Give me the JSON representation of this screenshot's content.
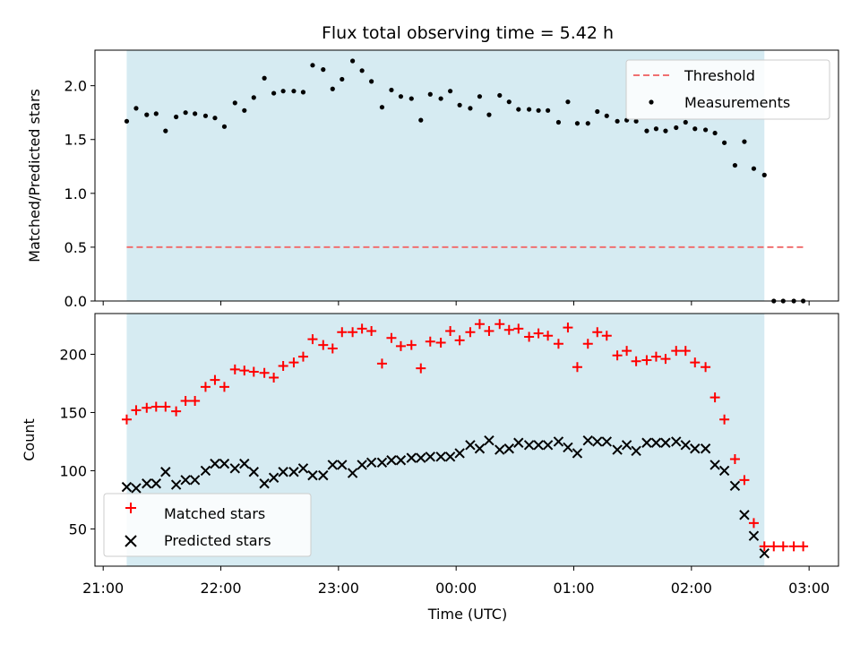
{
  "chart_data": {
    "type": "scatter",
    "title": "Flux total observing time = 5.42 h",
    "xlabel": "Time (UTC)",
    "x_ticks": [
      "21:00",
      "22:00",
      "23:00",
      "00:00",
      "01:00",
      "02:00",
      "03:00"
    ],
    "x_range_hours": [
      20.93,
      27.25
    ],
    "observing_window_hours": [
      21.2,
      26.62
    ],
    "colors": {
      "window": "#add8e6",
      "threshold": "#f07070",
      "measurements": "#000000",
      "matched": "#ff0000",
      "predicted": "#000000"
    },
    "panels": [
      {
        "ylabel": "Matched/Predicted stars",
        "ylim": [
          0,
          2.33
        ],
        "y_ticks": [
          "0.0",
          "0.5",
          "1.0",
          "1.5",
          "2.0"
        ],
        "y_tick_values": [
          0,
          0.5,
          1.0,
          1.5,
          2.0
        ],
        "legend_position": "top-right",
        "series": [
          {
            "name": "Threshold",
            "kind": "dashed-line",
            "x": [
              21.2,
              26.95
            ],
            "values": [
              0.5,
              0.5
            ]
          },
          {
            "name": "Measurements",
            "kind": "dot",
            "values": [
              [
                21.2,
                1.67
              ],
              [
                21.28,
                1.79
              ],
              [
                21.37,
                1.73
              ],
              [
                21.45,
                1.74
              ],
              [
                21.53,
                1.58
              ],
              [
                21.62,
                1.71
              ],
              [
                21.7,
                1.75
              ],
              [
                21.78,
                1.74
              ],
              [
                21.87,
                1.72
              ],
              [
                21.95,
                1.7
              ],
              [
                22.03,
                1.62
              ],
              [
                22.12,
                1.84
              ],
              [
                22.2,
                1.77
              ],
              [
                22.28,
                1.89
              ],
              [
                22.37,
                2.07
              ],
              [
                22.45,
                1.93
              ],
              [
                22.53,
                1.95
              ],
              [
                22.62,
                1.95
              ],
              [
                22.7,
                1.94
              ],
              [
                22.78,
                2.19
              ],
              [
                22.87,
                2.15
              ],
              [
                22.95,
                1.97
              ],
              [
                23.03,
                2.06
              ],
              [
                23.12,
                2.23
              ],
              [
                23.2,
                2.14
              ],
              [
                23.28,
                2.04
              ],
              [
                23.37,
                1.8
              ],
              [
                23.45,
                1.96
              ],
              [
                23.53,
                1.9
              ],
              [
                23.62,
                1.88
              ],
              [
                23.7,
                1.68
              ],
              [
                23.78,
                1.92
              ],
              [
                23.87,
                1.88
              ],
              [
                23.95,
                1.95
              ],
              [
                24.03,
                1.82
              ],
              [
                24.12,
                1.79
              ],
              [
                24.2,
                1.9
              ],
              [
                24.28,
                1.73
              ],
              [
                24.37,
                1.91
              ],
              [
                24.45,
                1.85
              ],
              [
                24.53,
                1.78
              ],
              [
                24.62,
                1.78
              ],
              [
                24.7,
                1.77
              ],
              [
                24.78,
                1.77
              ],
              [
                24.87,
                1.66
              ],
              [
                24.95,
                1.85
              ],
              [
                25.03,
                1.65
              ],
              [
                25.12,
                1.65
              ],
              [
                25.2,
                1.76
              ],
              [
                25.28,
                1.72
              ],
              [
                25.37,
                1.67
              ],
              [
                25.45,
                1.68
              ],
              [
                25.53,
                1.67
              ],
              [
                25.62,
                1.58
              ],
              [
                25.7,
                1.6
              ],
              [
                25.78,
                1.58
              ],
              [
                25.87,
                1.61
              ],
              [
                25.95,
                1.66
              ],
              [
                26.03,
                1.6
              ],
              [
                26.12,
                1.59
              ],
              [
                26.2,
                1.56
              ],
              [
                26.28,
                1.47
              ],
              [
                26.37,
                1.26
              ],
              [
                26.45,
                1.48
              ],
              [
                26.53,
                1.23
              ],
              [
                26.62,
                1.17
              ],
              [
                26.7,
                0.0
              ],
              [
                26.78,
                0.0
              ],
              [
                26.87,
                0.0
              ],
              [
                26.95,
                0.0
              ]
            ]
          }
        ]
      },
      {
        "ylabel": "Count",
        "ylim": [
          18,
          235
        ],
        "y_ticks": [
          "50",
          "100",
          "150",
          "200"
        ],
        "y_tick_values": [
          50,
          100,
          150,
          200
        ],
        "legend_position": "bottom-left",
        "series": [
          {
            "name": "Matched stars",
            "kind": "plus",
            "values": [
              [
                21.2,
                144
              ],
              [
                21.28,
                152
              ],
              [
                21.37,
                154
              ],
              [
                21.45,
                155
              ],
              [
                21.53,
                155
              ],
              [
                21.62,
                151
              ],
              [
                21.7,
                160
              ],
              [
                21.78,
                160
              ],
              [
                21.87,
                172
              ],
              [
                21.95,
                178
              ],
              [
                22.03,
                172
              ],
              [
                22.12,
                187
              ],
              [
                22.2,
                186
              ],
              [
                22.28,
                185
              ],
              [
                22.37,
                184
              ],
              [
                22.45,
                180
              ],
              [
                22.53,
                190
              ],
              [
                22.62,
                193
              ],
              [
                22.7,
                198
              ],
              [
                22.78,
                213
              ],
              [
                22.87,
                208
              ],
              [
                22.95,
                205
              ],
              [
                23.03,
                219
              ],
              [
                23.12,
                219
              ],
              [
                23.2,
                222
              ],
              [
                23.28,
                220
              ],
              [
                23.37,
                192
              ],
              [
                23.45,
                214
              ],
              [
                23.53,
                207
              ],
              [
                23.62,
                208
              ],
              [
                23.7,
                188
              ],
              [
                23.78,
                211
              ],
              [
                23.87,
                210
              ],
              [
                23.95,
                220
              ],
              [
                24.03,
                212
              ],
              [
                24.12,
                219
              ],
              [
                24.2,
                226
              ],
              [
                24.28,
                220
              ],
              [
                24.37,
                226
              ],
              [
                24.45,
                221
              ],
              [
                24.53,
                222
              ],
              [
                24.62,
                215
              ],
              [
                24.7,
                218
              ],
              [
                24.78,
                216
              ],
              [
                24.87,
                209
              ],
              [
                24.95,
                223
              ],
              [
                25.03,
                189
              ],
              [
                25.12,
                209
              ],
              [
                25.2,
                219
              ],
              [
                25.28,
                216
              ],
              [
                25.37,
                199
              ],
              [
                25.45,
                203
              ],
              [
                25.53,
                194
              ],
              [
                25.62,
                195
              ],
              [
                25.7,
                198
              ],
              [
                25.78,
                196
              ],
              [
                25.87,
                203
              ],
              [
                25.95,
                203
              ],
              [
                26.03,
                193
              ],
              [
                26.12,
                189
              ],
              [
                26.2,
                163
              ],
              [
                26.28,
                144
              ],
              [
                26.37,
                110
              ],
              [
                26.45,
                92
              ],
              [
                26.53,
                55
              ],
              [
                26.62,
                35
              ],
              [
                26.7,
                35
              ],
              [
                26.78,
                35
              ],
              [
                26.87,
                35
              ],
              [
                26.95,
                35
              ]
            ]
          },
          {
            "name": "Predicted stars",
            "kind": "x",
            "values": [
              [
                21.2,
                86
              ],
              [
                21.28,
                85
              ],
              [
                21.37,
                89
              ],
              [
                21.45,
                89
              ],
              [
                21.53,
                99
              ],
              [
                21.62,
                88
              ],
              [
                21.7,
                92
              ],
              [
                21.78,
                92
              ],
              [
                21.87,
                100
              ],
              [
                21.95,
                106
              ],
              [
                22.03,
                106
              ],
              [
                22.12,
                102
              ],
              [
                22.2,
                106
              ],
              [
                22.28,
                99
              ],
              [
                22.37,
                89
              ],
              [
                22.45,
                94
              ],
              [
                22.53,
                99
              ],
              [
                22.62,
                99
              ],
              [
                22.7,
                102
              ],
              [
                22.78,
                96
              ],
              [
                22.87,
                96
              ],
              [
                22.95,
                105
              ],
              [
                23.03,
                105
              ],
              [
                23.12,
                98
              ],
              [
                23.2,
                105
              ],
              [
                23.28,
                107
              ],
              [
                23.37,
                107
              ],
              [
                23.45,
                109
              ],
              [
                23.53,
                109
              ],
              [
                23.62,
                111
              ],
              [
                23.7,
                111
              ],
              [
                23.78,
                112
              ],
              [
                23.87,
                112
              ],
              [
                23.95,
                112
              ],
              [
                24.03,
                115
              ],
              [
                24.12,
                122
              ],
              [
                24.2,
                119
              ],
              [
                24.28,
                126
              ],
              [
                24.37,
                118
              ],
              [
                24.45,
                119
              ],
              [
                24.53,
                124
              ],
              [
                24.62,
                122
              ],
              [
                24.7,
                122
              ],
              [
                24.78,
                122
              ],
              [
                24.87,
                125
              ],
              [
                24.95,
                120
              ],
              [
                25.03,
                115
              ],
              [
                25.12,
                126
              ],
              [
                25.2,
                125
              ],
              [
                25.28,
                125
              ],
              [
                25.37,
                118
              ],
              [
                25.45,
                122
              ],
              [
                25.53,
                117
              ],
              [
                25.62,
                124
              ],
              [
                25.7,
                124
              ],
              [
                25.78,
                124
              ],
              [
                25.87,
                125
              ],
              [
                25.95,
                122
              ],
              [
                26.03,
                119
              ],
              [
                26.12,
                119
              ],
              [
                26.2,
                105
              ],
              [
                26.28,
                100
              ],
              [
                26.37,
                87
              ],
              [
                26.45,
                62
              ],
              [
                26.53,
                44
              ],
              [
                26.62,
                29
              ]
            ]
          }
        ]
      }
    ]
  }
}
